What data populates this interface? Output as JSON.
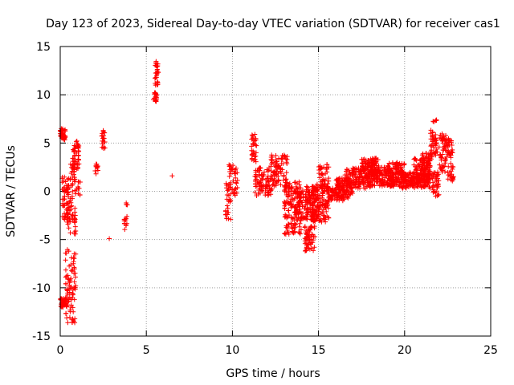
{
  "chart_data": {
    "type": "scatter",
    "title": "Day 123 of 2023, Sidereal Day-to-day VTEC variation (SDTVAR) for receiver cas1",
    "xlabel": "GPS time / hours",
    "ylabel": "SDTVAR / TECUs",
    "xlim": [
      0,
      25
    ],
    "ylim": [
      -15,
      15
    ],
    "xticks": [
      0,
      5,
      10,
      15,
      20,
      25
    ],
    "yticks": [
      -15,
      -10,
      -5,
      0,
      5,
      10,
      15
    ],
    "grid": true,
    "marker": "+",
    "color": "#ff0000",
    "series": [
      {
        "name": "cas1",
        "clusters": [
          {
            "x0": 0.0,
            "x1": 0.3,
            "y0": 5.3,
            "y1": 6.5,
            "n": 40
          },
          {
            "x0": 0.0,
            "x1": 0.4,
            "y0": -12.0,
            "y1": -11.0,
            "n": 40
          },
          {
            "x0": 0.1,
            "x1": 0.5,
            "y0": -3.0,
            "y1": 1.5,
            "n": 45
          },
          {
            "x0": 0.3,
            "x1": 0.9,
            "y0": -13.8,
            "y1": -6.0,
            "n": 80
          },
          {
            "x0": 0.4,
            "x1": 0.9,
            "y0": -4.5,
            "y1": 3.0,
            "n": 70
          },
          {
            "x0": 0.7,
            "x1": 1.1,
            "y0": 2.0,
            "y1": 5.3,
            "n": 45
          },
          {
            "x0": 1.0,
            "x1": 1.2,
            "y0": -0.5,
            "y1": 1.0,
            "n": 8
          },
          {
            "x0": 2.0,
            "x1": 2.2,
            "y0": 1.8,
            "y1": 3.8,
            "n": 12
          },
          {
            "x0": 2.4,
            "x1": 2.6,
            "y0": 4.3,
            "y1": 6.5,
            "n": 18
          },
          {
            "x0": 3.7,
            "x1": 3.9,
            "y0": -4.0,
            "y1": -2.5,
            "n": 12
          },
          {
            "x0": 3.8,
            "x1": 3.9,
            "y0": -1.8,
            "y1": -1.2,
            "n": 3
          },
          {
            "x0": 5.4,
            "x1": 5.6,
            "y0": 9.3,
            "y1": 10.3,
            "n": 20
          },
          {
            "x0": 5.5,
            "x1": 5.7,
            "y0": 11.0,
            "y1": 13.5,
            "n": 25
          },
          {
            "x0": 9.6,
            "x1": 9.9,
            "y0": -3.0,
            "y1": 1.0,
            "n": 30
          },
          {
            "x0": 9.8,
            "x1": 10.3,
            "y0": -0.5,
            "y1": 2.8,
            "n": 35
          },
          {
            "x0": 11.1,
            "x1": 11.4,
            "y0": 3.0,
            "y1": 6.2,
            "n": 30
          },
          {
            "x0": 11.3,
            "x1": 12.3,
            "y0": -0.5,
            "y1": 2.5,
            "n": 90
          },
          {
            "x0": 12.2,
            "x1": 13.2,
            "y0": 0.5,
            "y1": 3.8,
            "n": 90
          },
          {
            "x0": 13.0,
            "x1": 14.0,
            "y0": -4.5,
            "y1": 1.0,
            "n": 140
          },
          {
            "x0": 13.6,
            "x1": 15.0,
            "y0": -3.0,
            "y1": 0.5,
            "n": 160
          },
          {
            "x0": 14.2,
            "x1": 14.8,
            "y0": -6.2,
            "y1": -3.5,
            "n": 60
          },
          {
            "x0": 14.6,
            "x1": 15.6,
            "y0": -3.2,
            "y1": 0.8,
            "n": 130
          },
          {
            "x0": 15.0,
            "x1": 15.6,
            "y0": 0.0,
            "y1": 2.8,
            "n": 40
          },
          {
            "x0": 15.5,
            "x1": 16.5,
            "y0": -1.0,
            "y1": 0.5,
            "n": 70
          },
          {
            "x0": 16.0,
            "x1": 17.0,
            "y0": -0.8,
            "y1": 1.5,
            "n": 90
          },
          {
            "x0": 16.5,
            "x1": 18.0,
            "y0": 0.3,
            "y1": 2.5,
            "n": 140
          },
          {
            "x0": 17.5,
            "x1": 18.5,
            "y0": 1.5,
            "y1": 3.5,
            "n": 100
          },
          {
            "x0": 18.0,
            "x1": 19.5,
            "y0": 0.5,
            "y1": 2.5,
            "n": 150
          },
          {
            "x0": 19.0,
            "x1": 20.0,
            "y0": 0.5,
            "y1": 3.0,
            "n": 110
          },
          {
            "x0": 19.8,
            "x1": 21.5,
            "y0": 0.3,
            "y1": 2.0,
            "n": 170
          },
          {
            "x0": 20.5,
            "x1": 21.5,
            "y0": 1.0,
            "y1": 3.5,
            "n": 90
          },
          {
            "x0": 21.0,
            "x1": 21.6,
            "y0": 1.5,
            "y1": 4.0,
            "n": 50
          },
          {
            "x0": 21.5,
            "x1": 21.9,
            "y0": 3.5,
            "y1": 7.5,
            "n": 45
          },
          {
            "x0": 21.6,
            "x1": 22.0,
            "y0": -0.6,
            "y1": 2.0,
            "n": 40
          },
          {
            "x0": 22.0,
            "x1": 22.4,
            "y0": 2.0,
            "y1": 6.0,
            "n": 45
          },
          {
            "x0": 22.3,
            "x1": 22.8,
            "y0": 3.5,
            "y1": 5.5,
            "n": 40
          },
          {
            "x0": 22.5,
            "x1": 22.9,
            "y0": 1.0,
            "y1": 3.0,
            "n": 20
          }
        ],
        "points": [
          [
            6.5,
            1.6
          ],
          [
            2.85,
            -4.9
          ],
          [
            0.6,
            2.8
          ],
          [
            0.95,
            0.2
          ],
          [
            1.1,
            0.3
          ],
          [
            0.05,
            6.3
          ],
          [
            0.15,
            6.2
          ],
          [
            5.55,
            13.3
          ],
          [
            5.6,
            12.0
          ],
          [
            22.8,
            1.3
          ],
          [
            21.8,
            -0.5
          ],
          [
            14.5,
            -6.0
          ],
          [
            15.3,
            2.5
          ],
          [
            11.3,
            5.9
          ],
          [
            0.7,
            -13.6
          ],
          [
            9.9,
            -2.9
          ],
          [
            9.7,
            -1.5
          ],
          [
            0.2,
            -1.5
          ],
          [
            0.25,
            -0.5
          ],
          [
            21.7,
            7.2
          ],
          [
            22.2,
            5.5
          ],
          [
            2.5,
            6.3
          ],
          [
            12.9,
            3.7
          ],
          [
            0.8,
            -8.5
          ],
          [
            0.9,
            -6.5
          ],
          [
            3.9,
            -1.4
          ],
          [
            22.6,
            4.8
          ],
          [
            15.9,
            -0.2
          ],
          [
            13.9,
            -4.3
          ],
          [
            20.4,
            1.2
          ]
        ]
      }
    ]
  }
}
